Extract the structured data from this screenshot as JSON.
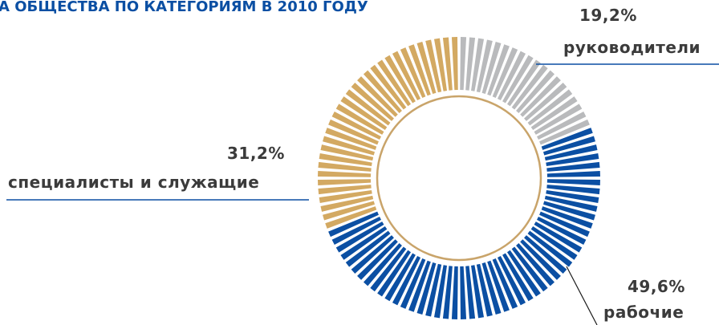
{
  "chart_data": {
    "type": "pie",
    "title": "А ОБЩЕСТВА ПО КАТЕГОРИЯМ В 2010 ГОДУ",
    "categories": [
      "руководители",
      "рабочие",
      "специалисты и служащие"
    ],
    "values": [
      19.2,
      49.6,
      31.2
    ],
    "value_labels": [
      "19,2%",
      "49,6%",
      "31,2%"
    ],
    "colors": [
      "#b9babc",
      "#0b4fa3",
      "#d3a962"
    ]
  }
}
